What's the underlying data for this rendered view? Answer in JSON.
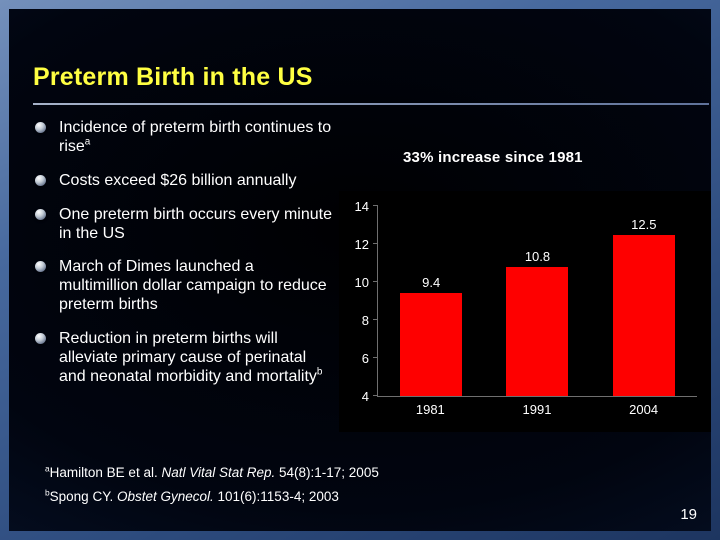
{
  "slide": {
    "title": "Preterm Birth in the US",
    "page_number": "19",
    "annotation": "33% increase since 1981",
    "bullets": [
      {
        "text": "Incidence of preterm birth continues to rise",
        "sup": "a"
      },
      {
        "text": "Costs exceed $26 billion annually",
        "sup": ""
      },
      {
        "text": "One preterm birth occurs every minute in the US",
        "sup": ""
      },
      {
        "text": "March of Dimes launched a multimillion dollar campaign to reduce preterm births",
        "sup": ""
      },
      {
        "text": "Reduction in preterm births will alleviate primary cause of perinatal and neonatal morbidity and mortality",
        "sup": "b"
      }
    ],
    "footnotes": [
      {
        "sup": "a",
        "author": "Hamilton BE et al. ",
        "journal": "Natl Vital Stat Rep.",
        "ref": " 54(8):1-17; 2005"
      },
      {
        "sup": "b",
        "author": "Spong CY. ",
        "journal": "Obstet Gynecol.",
        "ref": " 101(6):1153-4; 2003"
      }
    ]
  },
  "chart_data": {
    "type": "bar",
    "title": "",
    "xlabel": "",
    "ylabel": "",
    "categories": [
      "1981",
      "1991",
      "2004"
    ],
    "values": [
      9.4,
      10.8,
      12.5
    ],
    "ylim": [
      4,
      14
    ],
    "yticks": [
      4,
      6,
      8,
      10,
      12,
      14
    ],
    "grid": false,
    "legend": "none",
    "bar_color": "#fe0000",
    "plot_background": "#000000",
    "label_color": "#ffffff"
  },
  "colors": {
    "title": "#ffff42",
    "text": "#ffffff",
    "frame_blue": "#47699e"
  }
}
